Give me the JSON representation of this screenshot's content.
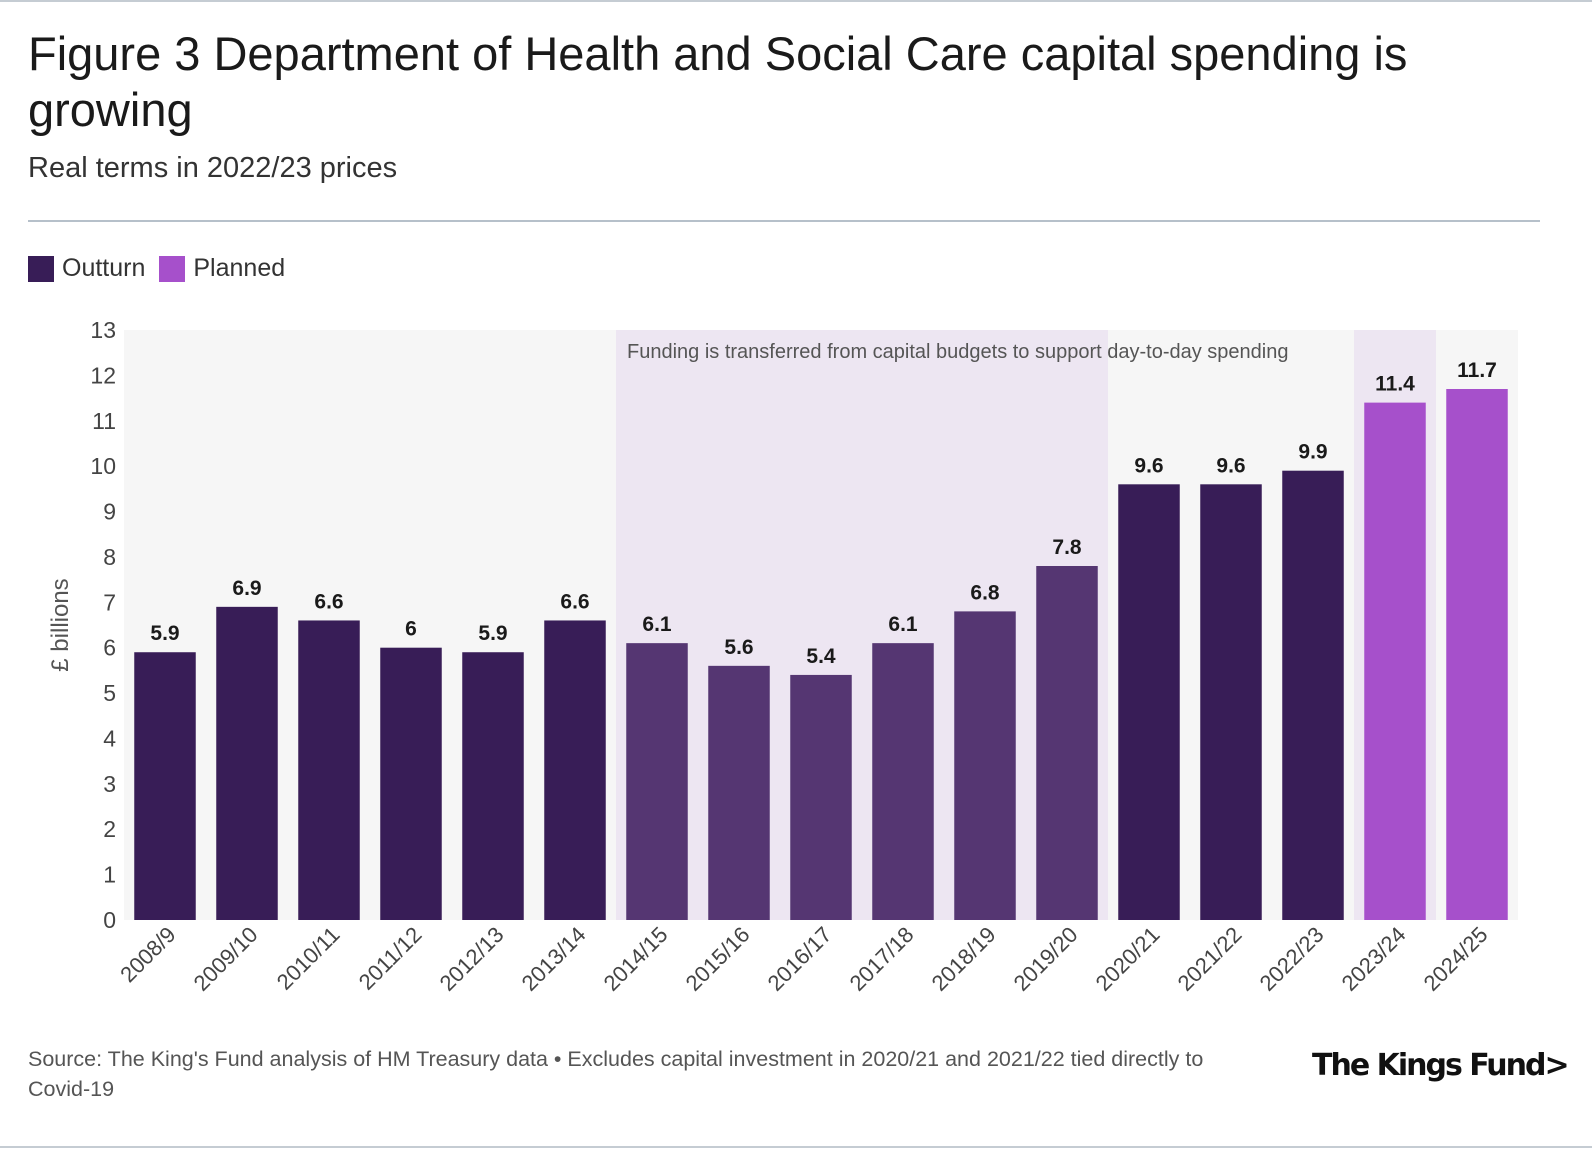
{
  "title": "Figure 3 Department of Health and Social Care capital spending is growing",
  "subtitle": "Real terms in 2022/23 prices",
  "legend": [
    {
      "label": "Outturn",
      "color": "#381d57"
    },
    {
      "label": "Planned",
      "color": "#a650cb"
    }
  ],
  "footer": {
    "source": "Source: The King's Fund analysis of HM Treasury data • Excludes capital investment in 2020/21 and 2021/22 tied directly to Covid-19",
    "logo": "The Kings Fund>"
  },
  "colors": {
    "outturn": "#381d57",
    "outturn_period": "#553672",
    "planned": "#a650cb",
    "plot_bg": "#f6f6f6",
    "period_bg": "#ede6f2"
  },
  "chart_data": {
    "type": "bar",
    "title": "Figure 3 Department of Health and Social Care capital spending is growing",
    "subtitle": "Real terms in 2022/23 prices",
    "xlabel": "",
    "ylabel": "£ billions",
    "ylim": [
      0,
      13
    ],
    "yticks": [
      0,
      1,
      2,
      3,
      4,
      5,
      6,
      7,
      8,
      9,
      10,
      11,
      12,
      13
    ],
    "grid": false,
    "legend_position": "top-left",
    "categories": [
      "2008/9",
      "2009/10",
      "2010/11",
      "2011/12",
      "2012/13",
      "2013/14",
      "2014/15",
      "2015/16",
      "2016/17",
      "2017/18",
      "2018/19",
      "2019/20",
      "2020/21",
      "2021/22",
      "2022/23",
      "2023/24",
      "2024/25"
    ],
    "values": [
      5.9,
      6.9,
      6.6,
      6.0,
      5.9,
      6.6,
      6.1,
      5.6,
      5.4,
      6.1,
      6.8,
      7.8,
      9.6,
      9.6,
      9.9,
      11.4,
      11.7
    ],
    "data_labels": [
      "5.9",
      "6.9",
      "6.6",
      "6",
      "5.9",
      "6.6",
      "6.1",
      "5.6",
      "5.4",
      "6.1",
      "6.8",
      "7.8",
      "9.6",
      "9.6",
      "9.9",
      "11.4",
      "11.7"
    ],
    "series_type": [
      "Outturn",
      "Outturn",
      "Outturn",
      "Outturn",
      "Outturn",
      "Outturn",
      "Outturn",
      "Outturn",
      "Outturn",
      "Outturn",
      "Outturn",
      "Outturn",
      "Outturn",
      "Outturn",
      "Outturn",
      "Planned",
      "Planned"
    ],
    "highlight_periods": [
      {
        "start": "2014/15",
        "end": "2019/20",
        "label": "Funding is transferred from capital budgets to support day-to-day spending"
      },
      {
        "start": "2023/24",
        "end": "2023/24",
        "label": ""
      }
    ]
  }
}
